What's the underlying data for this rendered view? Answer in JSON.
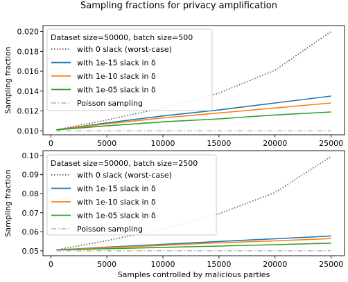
{
  "figure_title": "Sampling fractions for privacy amplification",
  "chart_data": [
    {
      "type": "line",
      "legend_title": "Dataset size=50000, batch size=500",
      "legend_position": "top-left",
      "ylabel": "Sampling fraction",
      "xlabel": "",
      "x": [
        500,
        5000,
        10000,
        15000,
        20000,
        25000
      ],
      "xlim": [
        -700,
        26200
      ],
      "ylim": [
        0.0096,
        0.0206
      ],
      "xticks": [
        0,
        5000,
        10000,
        15000,
        20000,
        25000
      ],
      "xtick_labels": [
        "0",
        "5000",
        "10000",
        "15000",
        "20000",
        "25000"
      ],
      "yticks": [
        0.01,
        0.012,
        0.014,
        0.016,
        0.018,
        0.02
      ],
      "ytick_labels": [
        "0.010",
        "0.012",
        "0.014",
        "0.016",
        "0.018",
        "0.020"
      ],
      "grid": false,
      "series": [
        {
          "name": "with 0 slack (worst-case)",
          "color": "#555555",
          "style": "dotted",
          "values": [
            0.0101,
            0.0111,
            0.0123,
            0.0138,
            0.0161,
            0.02
          ]
        },
        {
          "name": "with 1e-15 slack in δ",
          "color": "#1f77b4",
          "style": "solid",
          "values": [
            0.0101,
            0.0108,
            0.0115,
            0.0121,
            0.0128,
            0.0135
          ]
        },
        {
          "name": "with 1e-10 slack in δ",
          "color": "#ff7f0e",
          "style": "solid",
          "values": [
            0.0101,
            0.0107,
            0.0113,
            0.0118,
            0.0123,
            0.0128
          ]
        },
        {
          "name": "with 1e-05 slack in δ",
          "color": "#2ca02c",
          "style": "solid",
          "values": [
            0.0101,
            0.0105,
            0.0109,
            0.0112,
            0.0116,
            0.0119
          ]
        },
        {
          "name": "Poisson sampling",
          "color": "#bbbbbb",
          "style": "dashdot",
          "values": [
            0.01,
            0.01,
            0.01,
            0.01,
            0.01,
            0.01
          ]
        }
      ]
    },
    {
      "type": "line",
      "legend_title": "Dataset size=50000, batch size=2500",
      "legend_position": "top-left",
      "ylabel": "Sampling fraction",
      "xlabel": "Samples controlled by malicious parties",
      "x": [
        500,
        5000,
        10000,
        15000,
        20000,
        25000
      ],
      "xlim": [
        -700,
        26200
      ],
      "ylim": [
        0.0474,
        0.1026
      ],
      "xticks": [
        0,
        5000,
        10000,
        15000,
        20000,
        25000
      ],
      "xtick_labels": [
        "0",
        "5000",
        "10000",
        "15000",
        "20000",
        "25000"
      ],
      "yticks": [
        0.05,
        0.06,
        0.07,
        0.08,
        0.09,
        0.1
      ],
      "ytick_labels": [
        "0.05",
        "0.06",
        "0.07",
        "0.08",
        "0.09",
        "0.10"
      ],
      "grid": false,
      "series": [
        {
          "name": "with 0 slack (worst-case)",
          "color": "#555555",
          "style": "dotted",
          "values": [
            0.0505,
            0.0553,
            0.0615,
            0.0694,
            0.0806,
            0.0996
          ]
        },
        {
          "name": "with 1e-15 slack in δ",
          "color": "#1f77b4",
          "style": "solid",
          "values": [
            0.0505,
            0.0519,
            0.0534,
            0.0549,
            0.0563,
            0.0578
          ]
        },
        {
          "name": "with 1e-10 slack in δ",
          "color": "#ff7f0e",
          "style": "solid",
          "values": [
            0.0505,
            0.0517,
            0.0529,
            0.0542,
            0.0552,
            0.0564
          ]
        },
        {
          "name": "with 1e-05 slack in δ",
          "color": "#2ca02c",
          "style": "solid",
          "values": [
            0.0504,
            0.0511,
            0.0518,
            0.0525,
            0.0532,
            0.054
          ]
        },
        {
          "name": "Poisson sampling",
          "color": "#bbbbbb",
          "style": "dashdot",
          "values": [
            0.05,
            0.05,
            0.05,
            0.05,
            0.05,
            0.05
          ]
        }
      ]
    }
  ]
}
